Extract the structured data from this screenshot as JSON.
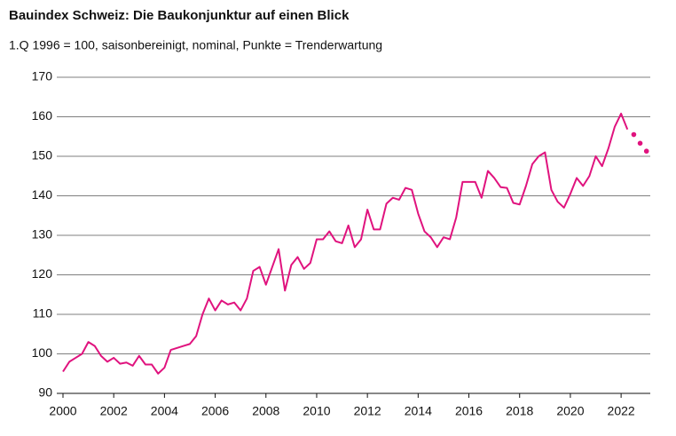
{
  "chart_data": {
    "type": "line",
    "title": "Bauindex Schweiz: Die Baukonjunktur auf einen Blick",
    "subtitle": "1.Q 1996 = 100, saisonbereinigt, nominal, Punkte = Trenderwartung",
    "series": [
      {
        "color": "#e0137e",
        "style": "line",
        "x": [
          2000,
          2000.25,
          2000.5,
          2000.75,
          2001,
          2001.25,
          2001.5,
          2001.75,
          2002,
          2002.25,
          2002.5,
          2002.75,
          2003,
          2003.25,
          2003.5,
          2003.75,
          2004,
          2004.25,
          2004.5,
          2004.75,
          2005,
          2005.25,
          2005.5,
          2005.75,
          2006,
          2006.25,
          2006.5,
          2006.75,
          2007,
          2007.25,
          2007.5,
          2007.75,
          2008,
          2008.25,
          2008.5,
          2008.75,
          2009,
          2009.25,
          2009.5,
          2009.75,
          2010,
          2010.25,
          2010.5,
          2010.75,
          2011,
          2011.25,
          2011.5,
          2011.75,
          2012,
          2012.25,
          2012.5,
          2012.75,
          2013,
          2013.25,
          2013.5,
          2013.75,
          2014,
          2014.25,
          2014.5,
          2014.75,
          2015,
          2015.25,
          2015.5,
          2015.75,
          2016,
          2016.25,
          2016.5,
          2016.75,
          2017,
          2017.25,
          2017.5,
          2017.75,
          2018,
          2018.25,
          2018.5,
          2018.75,
          2019,
          2019.25,
          2019.5,
          2019.75,
          2020,
          2020.25,
          2020.5,
          2020.75,
          2021,
          2021.25,
          2021.5,
          2021.75,
          2022,
          2022.25
        ],
        "values": [
          95.5,
          98,
          99,
          100,
          103,
          102,
          99.5,
          98,
          99,
          97.5,
          97.8,
          97,
          99.5,
          97.3,
          97.3,
          95,
          96.5,
          101,
          101.5,
          102,
          102.5,
          104.5,
          110,
          114,
          111,
          113.5,
          112.5,
          113,
          111,
          114,
          121,
          122,
          117.5,
          122,
          126.5,
          116,
          122.5,
          124.5,
          121.5,
          123,
          129,
          129,
          131,
          128.5,
          128,
          132.5,
          127,
          129,
          136.5,
          131.5,
          131.5,
          138,
          139.5,
          139,
          142,
          141.5,
          135.5,
          131,
          129.5,
          127,
          129.5,
          129,
          134.5,
          143.5,
          143.5,
          143.5,
          139.5,
          146.3,
          144.5,
          142.2,
          142,
          138.2,
          137.8,
          142.5,
          148,
          150,
          151,
          141.5,
          138.5,
          137,
          140.5,
          144.5,
          142.5,
          145,
          150,
          147.5,
          152,
          157.5,
          160.8,
          156.8
        ]
      },
      {
        "color": "#e0137e",
        "style": "dots",
        "x": [
          2022.5,
          2022.75,
          2023
        ],
        "values": [
          155.5,
          153.3,
          151.3
        ]
      }
    ],
    "xlim": [
      2000,
      2023.15
    ],
    "xticks": [
      2000,
      2002,
      2004,
      2006,
      2008,
      2010,
      2012,
      2014,
      2016,
      2018,
      2020,
      2022
    ],
    "ylim": [
      90,
      170
    ],
    "yticks": [
      90,
      100,
      110,
      120,
      130,
      140,
      150,
      160,
      170
    ],
    "grid": true
  }
}
